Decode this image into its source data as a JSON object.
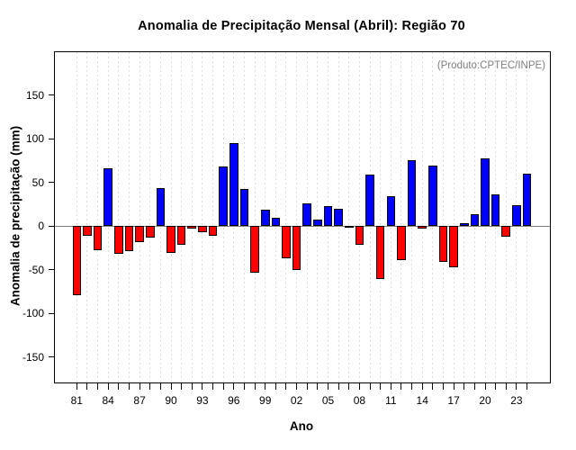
{
  "chart_data": {
    "type": "bar",
    "title": "Anomalia de Precipitação Mensal (Abril): Região 70",
    "annotation": "(Produto:CPTEC/INPE)",
    "xlabel": "Ano",
    "ylabel": "Anomalia de precipitação (mm)",
    "years": [
      1981,
      1982,
      1983,
      1984,
      1985,
      1986,
      1987,
      1988,
      1989,
      1990,
      1991,
      1992,
      1993,
      1994,
      1995,
      1996,
      1997,
      1998,
      1999,
      2000,
      2001,
      2002,
      2003,
      2004,
      2005,
      2006,
      2007,
      2008,
      2009,
      2010,
      2011,
      2012,
      2013,
      2014,
      2015,
      2016,
      2017,
      2018,
      2019,
      2020,
      2021,
      2022,
      2023,
      2024
    ],
    "values": [
      -79,
      -11,
      -28,
      66,
      -32,
      -29,
      -18,
      -13,
      44,
      -31,
      -21,
      -3,
      -7,
      -11,
      68,
      95,
      43,
      -53,
      19,
      10,
      -37,
      -50,
      26,
      8,
      23,
      20,
      -2,
      -21,
      59,
      -61,
      34,
      -39,
      76,
      -3,
      69,
      -41,
      -47,
      3,
      14,
      78,
      36,
      -12,
      24,
      60
    ],
    "x_tick_labels": [
      "81",
      "84",
      "87",
      "90",
      "93",
      "96",
      "99",
      "02",
      "05",
      "08",
      "11",
      "14",
      "17",
      "20",
      "23"
    ],
    "x_label_every_n_years": 3,
    "y_ticks": [
      150,
      100,
      50,
      0,
      -50,
      -100,
      -150
    ],
    "ylim": [
      -179,
      199
    ],
    "grid": "vertical-dashed",
    "legend": "none",
    "positive_color": "#0000FF",
    "negative_color": "#FF0000",
    "bar_border_color": "#000000",
    "zero_line_color": "#7F7F7F",
    "gridline_color": "#DCDCDC",
    "annotation_color": "#808080"
  }
}
